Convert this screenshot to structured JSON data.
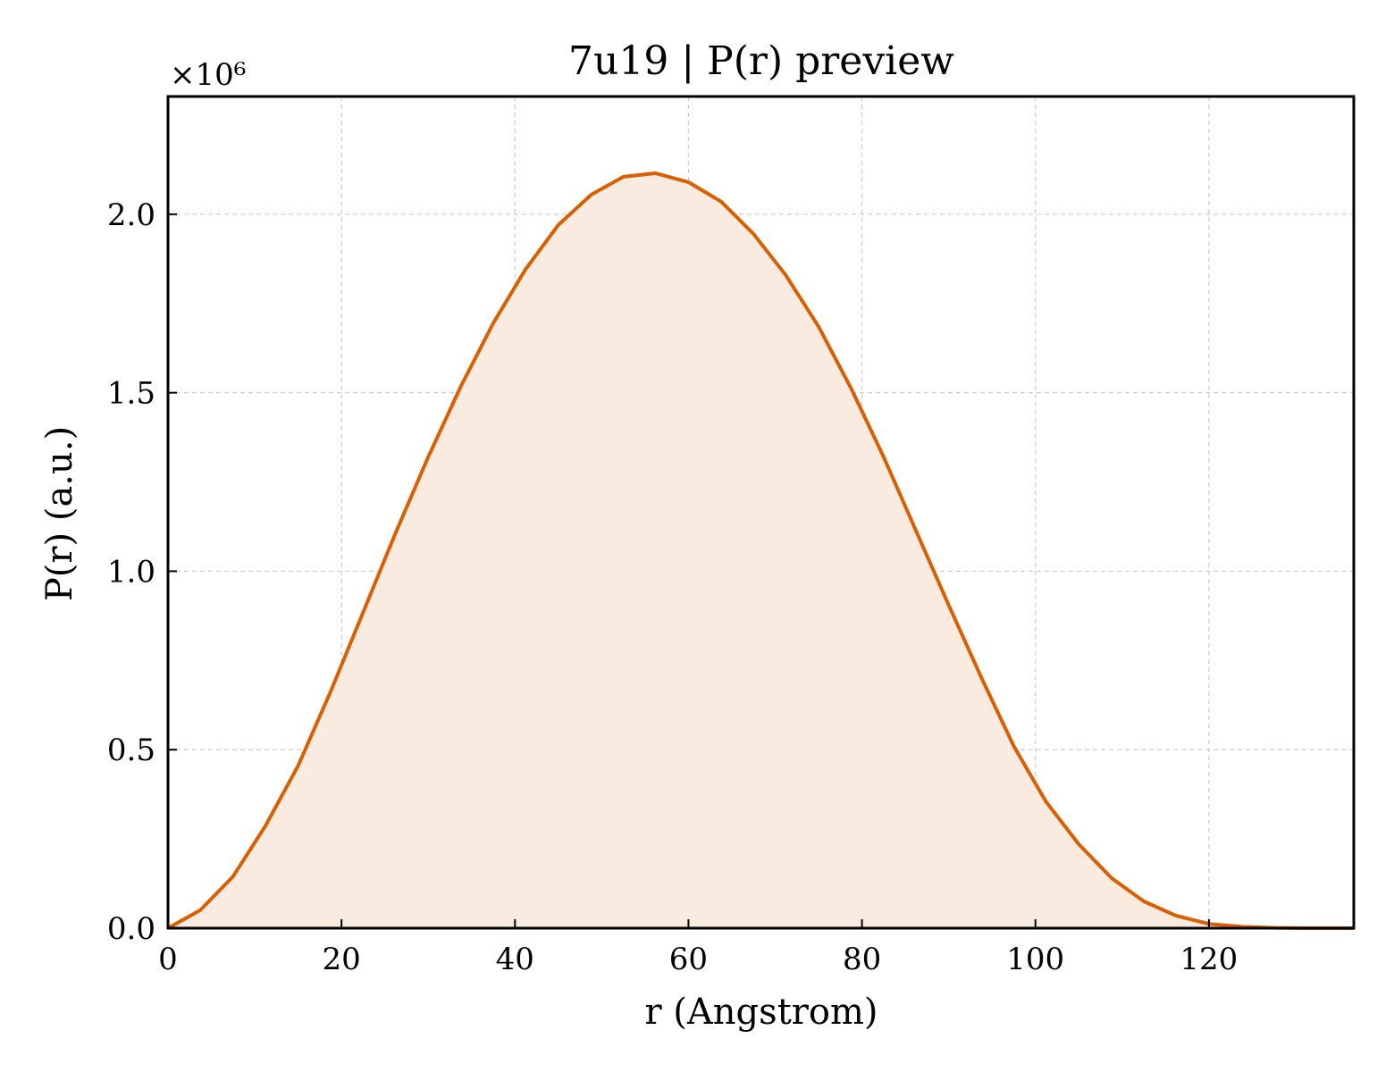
{
  "chart_data": {
    "type": "area",
    "title": "7u19 | P(r) preview",
    "xlabel": "r (Angstrom)",
    "ylabel": "P(r) (a.u.)",
    "y_offset_label": "×10⁶",
    "xlim": [
      0,
      136.7
    ],
    "ylim": [
      0,
      2.33
    ],
    "xticks": [
      0,
      20,
      40,
      60,
      80,
      100,
      120
    ],
    "yticks": [
      0.0,
      0.5,
      1.0,
      1.5,
      2.0
    ],
    "xtick_labels": [
      "0",
      "20",
      "40",
      "60",
      "80",
      "100",
      "120"
    ],
    "ytick_labels": [
      "0.0",
      "0.5",
      "1.0",
      "1.5",
      "2.0"
    ],
    "grid": true,
    "line_color": "#d95f02",
    "fill_color": "#f9ebe0",
    "series": [
      {
        "x": [
          0,
          3.7,
          7.5,
          11.2,
          15.0,
          18.7,
          22.5,
          26.2,
          30.0,
          33.8,
          37.5,
          41.2,
          45.0,
          48.8,
          52.5,
          56.2,
          60.0,
          63.8,
          67.5,
          71.2,
          75.0,
          78.8,
          82.5,
          86.2,
          90.0,
          93.8,
          97.5,
          101.2,
          105.0,
          108.8,
          112.5,
          116.2,
          120.0,
          123.8,
          127.5,
          131.2,
          136.7
        ],
        "y": [
          0.0,
          0.05,
          0.145,
          0.285,
          0.455,
          0.66,
          0.885,
          1.105,
          1.32,
          1.52,
          1.695,
          1.845,
          1.97,
          2.055,
          2.105,
          2.115,
          2.09,
          2.035,
          1.945,
          1.83,
          1.685,
          1.51,
          1.32,
          1.115,
          0.905,
          0.7,
          0.51,
          0.355,
          0.235,
          0.14,
          0.075,
          0.035,
          0.012,
          0.004,
          0.001,
          0.0,
          0.0
        ]
      }
    ]
  }
}
